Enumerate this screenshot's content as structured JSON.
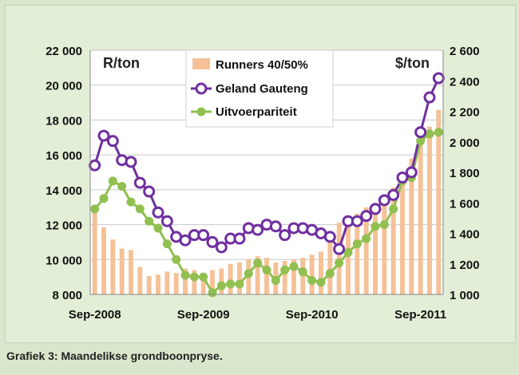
{
  "caption": "Grafiek 3: Maandelikse grondboonpryse.",
  "chart_data": {
    "type": "bar+line",
    "title": "",
    "left_axis_label": "R/ton",
    "right_axis_label": "$/ton",
    "left_ylim": [
      8000,
      22000
    ],
    "right_ylim": [
      1000,
      2600
    ],
    "left_ticks": [
      "8 000",
      "10 000",
      "12 000",
      "14 000",
      "16 000",
      "18 000",
      "20 000",
      "22 000"
    ],
    "right_ticks": [
      "1 000",
      "1 200",
      "1 400",
      "1 600",
      "1 800",
      "2 000",
      "2 200",
      "2 400",
      "2 600"
    ],
    "x_tick_labels": [
      {
        "index": 0,
        "label": "Sep-2008"
      },
      {
        "index": 12,
        "label": "Sep-2009"
      },
      {
        "index": 24,
        "label": "Sep-2010"
      },
      {
        "index": 36,
        "label": "Sep-2011"
      }
    ],
    "legend_position": "top-center",
    "grid": "horizontal",
    "colors": {
      "bars": "#f5c197",
      "gauteng": "#7030a0",
      "export": "#8fbf4f",
      "export_marker": "#92c050",
      "plot_background": "#ffffff"
    },
    "series": [
      {
        "name": "Runners 40/50%",
        "kind": "bar",
        "axis": "right",
        "values": [
          1570,
          1440,
          1360,
          1300,
          1290,
          1180,
          1120,
          1130,
          1150,
          1140,
          1170,
          1160,
          1130,
          1160,
          1170,
          1200,
          1210,
          1230,
          1250,
          1240,
          1210,
          1220,
          1230,
          1240,
          1260,
          1280,
          1370,
          1470,
          1500,
          1530,
          1570,
          1600,
          1650,
          1700,
          1790,
          1890,
          2000,
          2100,
          2210
        ]
      },
      {
        "name": "Geland Gauteng",
        "kind": "line",
        "axis": "left",
        "values": [
          15400,
          17100,
          16800,
          15700,
          15600,
          14400,
          13900,
          12700,
          12200,
          11300,
          11100,
          11400,
          11400,
          11000,
          10700,
          11200,
          11200,
          11800,
          11700,
          12000,
          11900,
          11400,
          11800,
          11800,
          11700,
          11500,
          11300,
          10600,
          12200,
          12200,
          12500,
          12900,
          13400,
          13700,
          14700,
          15000,
          17300,
          19300,
          20400
        ]
      },
      {
        "name": "Uitvoerpariteit",
        "kind": "line",
        "axis": "left",
        "values": [
          12900,
          13500,
          14500,
          14200,
          13300,
          12900,
          12200,
          11800,
          10900,
          10000,
          9100,
          9000,
          9000,
          8100,
          8500,
          8600,
          8600,
          9200,
          9800,
          9400,
          8800,
          9400,
          9600,
          9300,
          8800,
          8700,
          9200,
          9800,
          10400,
          10900,
          11200,
          11900,
          12000,
          12900,
          14500,
          14700,
          16800,
          17200,
          17300
        ]
      }
    ]
  }
}
